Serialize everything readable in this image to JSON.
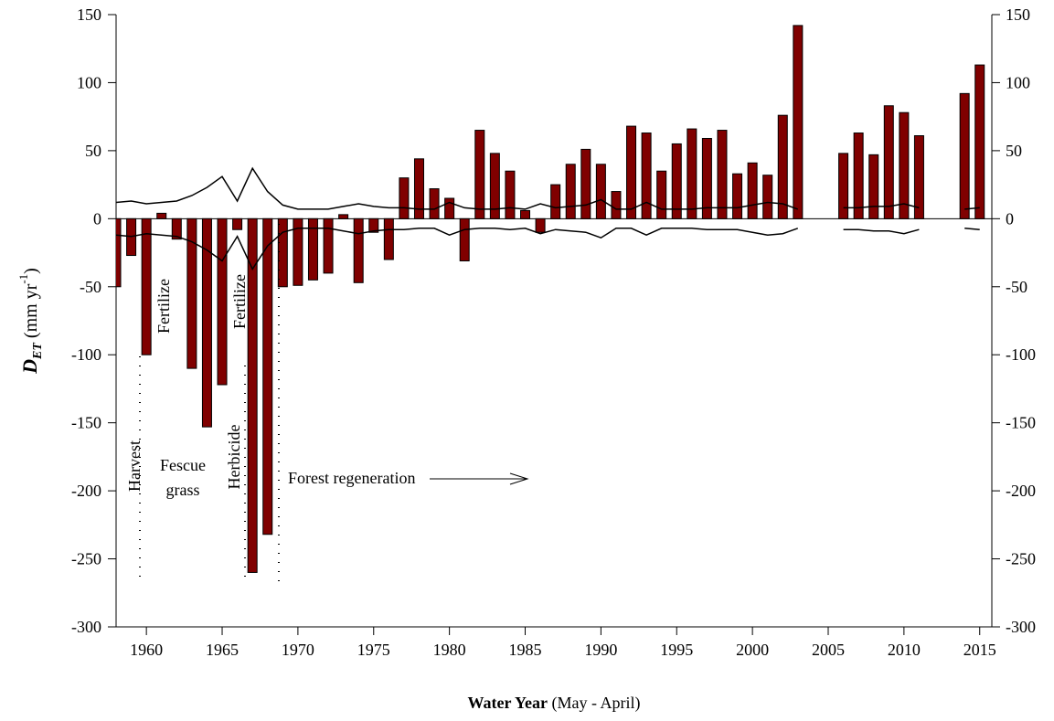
{
  "chart_data": {
    "type": "bar",
    "x": [
      1958,
      1959,
      1960,
      1961,
      1962,
      1963,
      1964,
      1965,
      1966,
      1967,
      1968,
      1969,
      1970,
      1971,
      1972,
      1973,
      1974,
      1975,
      1976,
      1977,
      1978,
      1979,
      1980,
      1981,
      1982,
      1983,
      1984,
      1985,
      1986,
      1987,
      1988,
      1989,
      1990,
      1991,
      1992,
      1993,
      1994,
      1995,
      1996,
      1997,
      1998,
      1999,
      2000,
      2001,
      2002,
      2003,
      2004,
      2005,
      2006,
      2007,
      2008,
      2009,
      2010,
      2011,
      2012,
      2013,
      2014,
      2015
    ],
    "values": [
      -50,
      -27,
      -100,
      4,
      -15,
      -110,
      -153,
      -122,
      -8,
      -260,
      -232,
      -50,
      -49,
      -45,
      -40,
      3,
      -47,
      -10,
      -30,
      30,
      44,
      22,
      15,
      -31,
      65,
      48,
      35,
      6,
      -10,
      25,
      40,
      51,
      40,
      20,
      68,
      63,
      35,
      55,
      66,
      59,
      65,
      33,
      41,
      32,
      76,
      142,
      null,
      null,
      48,
      63,
      47,
      83,
      78,
      61,
      null,
      null,
      92,
      113
    ],
    "color": "#800000",
    "upper": [
      12,
      13,
      11,
      12,
      13,
      17,
      23,
      31,
      13,
      37,
      20,
      10,
      7,
      7,
      7,
      9,
      11,
      9,
      8,
      8,
      7,
      7,
      12,
      8,
      7,
      7,
      8,
      7,
      11,
      8,
      9,
      10,
      14,
      7,
      7,
      12,
      7,
      7,
      7,
      8,
      8,
      8,
      10,
      12,
      11,
      7,
      null,
      null,
      8,
      8,
      9,
      9,
      11,
      8,
      null,
      null,
      7,
      8
    ],
    "lower": [
      -12,
      -13,
      -11,
      -12,
      -13,
      -17,
      -23,
      -31,
      -13,
      -37,
      -20,
      -10,
      -7,
      -7,
      -7,
      -9,
      -11,
      -9,
      -8,
      -8,
      -7,
      -7,
      -12,
      -8,
      -7,
      -7,
      -8,
      -7,
      -11,
      -8,
      -9,
      -10,
      -14,
      -7,
      -7,
      -12,
      -7,
      -7,
      -7,
      -8,
      -8,
      -8,
      -10,
      -12,
      -11,
      -7,
      null,
      null,
      -8,
      -8,
      -9,
      -9,
      -11,
      -8,
      null,
      null,
      -7,
      -8
    ],
    "line_color": "#000000",
    "xlim": [
      1958,
      2015.8
    ],
    "xticks": [
      1960,
      1965,
      1970,
      1975,
      1980,
      1985,
      1990,
      1995,
      2000,
      2005,
      2010,
      2015
    ],
    "ylim": [
      -300,
      150
    ],
    "yticks": [
      -300,
      -250,
      -200,
      -150,
      -100,
      -50,
      0,
      50,
      100,
      150
    ],
    "y2lim": [
      -300,
      150
    ],
    "y2ticks": [
      -300,
      -250,
      -200,
      -150,
      -100,
      -50,
      0,
      50,
      100,
      150
    ],
    "ylabel_parts": [
      "D",
      "ET",
      " (mm yr",
      "-1",
      ")"
    ],
    "xlabel_bold": "Water Year",
    "xlabel_rest": " (May - April)",
    "annotations": [
      "Harvest",
      "Fertilize",
      "Fescue",
      "grass",
      "Herbicide",
      "Fertilize",
      "Forest regeneration"
    ]
  }
}
